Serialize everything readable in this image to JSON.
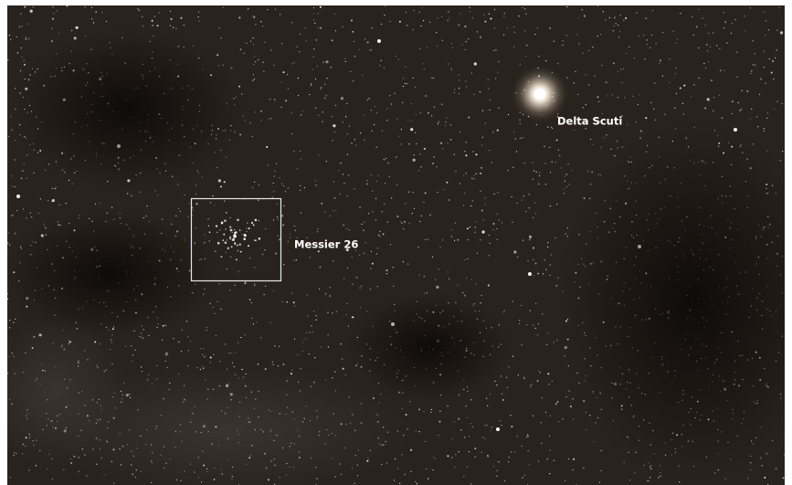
{
  "image": {
    "labels": {
      "delta_scuti": "Delta Scuti",
      "messier_26": "Messier 26"
    }
  }
}
